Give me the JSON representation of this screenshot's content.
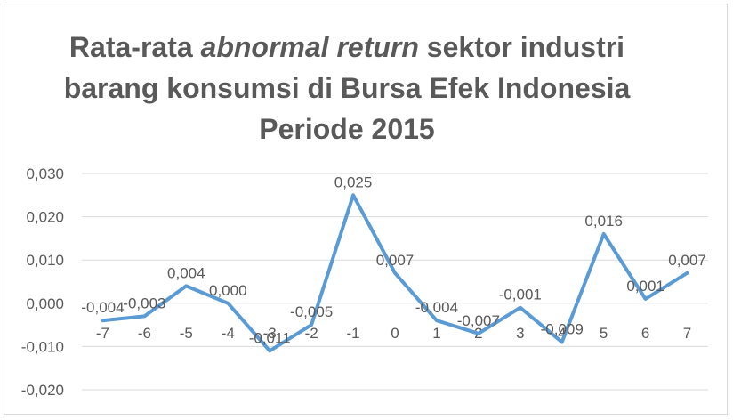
{
  "chart_data": {
    "type": "line",
    "title_parts": {
      "line1_before": "Rata-rata ",
      "line1_italic": "abnormal return",
      "line1_after": " sektor industri",
      "line2": "barang konsumsi di Bursa Efek Indonesia",
      "line3": "Periode 2015"
    },
    "categories": [
      "-7",
      "-6",
      "-5",
      "-4",
      "-3",
      "-2",
      "-1",
      "0",
      "1",
      "2",
      "3",
      "4",
      "5",
      "6",
      "7"
    ],
    "values": [
      -0.004,
      -0.003,
      0.004,
      0.0,
      -0.011,
      -0.005,
      0.025,
      0.007,
      -0.004,
      -0.007,
      -0.001,
      -0.009,
      0.016,
      0.001,
      0.007
    ],
    "data_labels": [
      "-0,004",
      "-0,003",
      "0,004",
      "0,000",
      "-0,011",
      "-0,005",
      "0,025",
      "0,007",
      "-0,004",
      "-0,007",
      "-0,001",
      "-0,009",
      "0,016",
      "0,001",
      "0,007"
    ],
    "ylim": [
      -0.02,
      0.03
    ],
    "yticks": [
      0.03,
      0.02,
      0.01,
      0.0,
      -0.01,
      -0.02
    ],
    "ytick_labels": [
      "0,030",
      "0,020",
      "0,010",
      "0,000",
      "-0,010",
      "-0,020"
    ],
    "xlabel": "",
    "ylabel": "",
    "grid": true,
    "legend": "none",
    "colors": {
      "line": "#5b9bd5",
      "grid": "#d9d9d9",
      "text": "#595959"
    }
  }
}
